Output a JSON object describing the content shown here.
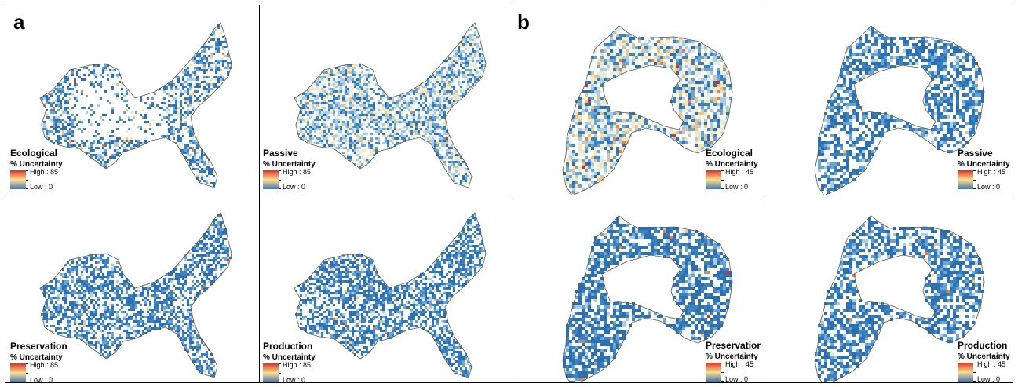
{
  "figure": {
    "groups": [
      {
        "letter": "a",
        "panels": [
          {
            "name": "Ecological",
            "legend_title": "% Uncertainty",
            "high": "High : 85",
            "low": "Low : 0",
            "style": "ecoA"
          },
          {
            "name": "Passive",
            "legend_title": "% Uncertainty",
            "high": "High : 85",
            "low": "Low : 0",
            "style": "passA"
          },
          {
            "name": "Preservation",
            "legend_title": "% Uncertainty",
            "high": "High : 85",
            "low": "Low : 0",
            "style": "presA"
          },
          {
            "name": "Production",
            "legend_title": "% Uncertainty",
            "high": "High : 85",
            "low": "Low : 0",
            "style": "prodA"
          }
        ]
      },
      {
        "letter": "b",
        "panels": [
          {
            "name": "Ecological",
            "legend_title": "% Uncertainty",
            "high": "High : 45",
            "low": "Low : 0",
            "style": "ecoB"
          },
          {
            "name": "Passive",
            "legend_title": "% Uncertainty",
            "high": "High : 45",
            "low": "Low : 0",
            "style": "passB"
          },
          {
            "name": "Preservation",
            "legend_title": "% Uncertainty",
            "high": "High : 45",
            "low": "Low : 0",
            "style": "presB"
          },
          {
            "name": "Production",
            "legend_title": "% Uncertainty",
            "high": "High : 45",
            "low": "Low : 0",
            "style": "prodB"
          }
        ]
      }
    ],
    "colors": {
      "border": "#000000",
      "outline": "#555555",
      "low": "#4575b4",
      "mid": "#fee090",
      "high": "#d73027"
    }
  }
}
